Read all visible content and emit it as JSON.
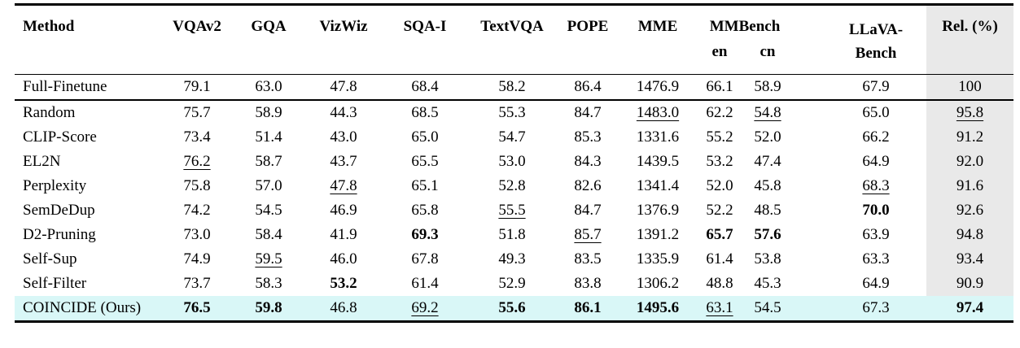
{
  "colors": {
    "highlight_row_bg": "#d9f7f7",
    "rel_column_bg": "#e9e9e9",
    "rule_color": "#000000",
    "text_color": "#000000"
  },
  "table": {
    "header": {
      "method": "Method",
      "single_cols": [
        "VQAv2",
        "GQA",
        "VizWiz",
        "SQA-I",
        "TextVQA",
        "POPE",
        "MME"
      ],
      "mmbench": {
        "label": "MMBench",
        "sub": [
          "en",
          "cn"
        ]
      },
      "llava_bench": {
        "line1": "LLaVA-",
        "line2": "Bench"
      },
      "rel": "Rel. (%)"
    },
    "full_finetune_row": {
      "method": "Full-Finetune",
      "highlight": false,
      "cells": [
        {
          "v": "79.1"
        },
        {
          "v": "63.0"
        },
        {
          "v": "47.8"
        },
        {
          "v": "68.4"
        },
        {
          "v": "58.2"
        },
        {
          "v": "86.4"
        },
        {
          "v": "1476.9"
        },
        {
          "v": "66.1"
        },
        {
          "v": "58.9"
        },
        {
          "v": "67.9"
        },
        {
          "v": "100"
        }
      ]
    },
    "rows": [
      {
        "method": "Random",
        "highlight": false,
        "cells": [
          {
            "v": "75.7"
          },
          {
            "v": "58.9"
          },
          {
            "v": "44.3"
          },
          {
            "v": "68.5"
          },
          {
            "v": "55.3"
          },
          {
            "v": "84.7"
          },
          {
            "v": "1483.0",
            "u": true
          },
          {
            "v": "62.2"
          },
          {
            "v": "54.8",
            "u": true
          },
          {
            "v": "65.0"
          },
          {
            "v": "95.8",
            "u": true
          }
        ]
      },
      {
        "method": "CLIP-Score",
        "highlight": false,
        "cells": [
          {
            "v": "73.4"
          },
          {
            "v": "51.4"
          },
          {
            "v": "43.0"
          },
          {
            "v": "65.0"
          },
          {
            "v": "54.7"
          },
          {
            "v": "85.3"
          },
          {
            "v": "1331.6"
          },
          {
            "v": "55.2"
          },
          {
            "v": "52.0"
          },
          {
            "v": "66.2"
          },
          {
            "v": "91.2"
          }
        ]
      },
      {
        "method": "EL2N",
        "highlight": false,
        "cells": [
          {
            "v": "76.2",
            "u": true
          },
          {
            "v": "58.7"
          },
          {
            "v": "43.7"
          },
          {
            "v": "65.5"
          },
          {
            "v": "53.0"
          },
          {
            "v": "84.3"
          },
          {
            "v": "1439.5"
          },
          {
            "v": "53.2"
          },
          {
            "v": "47.4"
          },
          {
            "v": "64.9"
          },
          {
            "v": "92.0"
          }
        ]
      },
      {
        "method": "Perplexity",
        "highlight": false,
        "cells": [
          {
            "v": "75.8"
          },
          {
            "v": "57.0"
          },
          {
            "v": "47.8",
            "u": true
          },
          {
            "v": "65.1"
          },
          {
            "v": "52.8"
          },
          {
            "v": "82.6"
          },
          {
            "v": "1341.4"
          },
          {
            "v": "52.0"
          },
          {
            "v": "45.8"
          },
          {
            "v": "68.3",
            "u": true
          },
          {
            "v": "91.6"
          }
        ]
      },
      {
        "method": "SemDeDup",
        "highlight": false,
        "cells": [
          {
            "v": "74.2"
          },
          {
            "v": "54.5"
          },
          {
            "v": "46.9"
          },
          {
            "v": "65.8"
          },
          {
            "v": "55.5",
            "u": true
          },
          {
            "v": "84.7"
          },
          {
            "v": "1376.9"
          },
          {
            "v": "52.2"
          },
          {
            "v": "48.5"
          },
          {
            "v": "70.0",
            "b": true
          },
          {
            "v": "92.6"
          }
        ]
      },
      {
        "method": "D2-Pruning",
        "highlight": false,
        "cells": [
          {
            "v": "73.0"
          },
          {
            "v": "58.4"
          },
          {
            "v": "41.9"
          },
          {
            "v": "69.3",
            "b": true
          },
          {
            "v": "51.8"
          },
          {
            "v": "85.7",
            "u": true
          },
          {
            "v": "1391.2"
          },
          {
            "v": "65.7",
            "b": true
          },
          {
            "v": "57.6",
            "b": true
          },
          {
            "v": "63.9"
          },
          {
            "v": "94.8"
          }
        ]
      },
      {
        "method": "Self-Sup",
        "highlight": false,
        "cells": [
          {
            "v": "74.9"
          },
          {
            "v": "59.5",
            "u": true
          },
          {
            "v": "46.0"
          },
          {
            "v": "67.8"
          },
          {
            "v": "49.3"
          },
          {
            "v": "83.5"
          },
          {
            "v": "1335.9"
          },
          {
            "v": "61.4"
          },
          {
            "v": "53.8"
          },
          {
            "v": "63.3"
          },
          {
            "v": "93.4"
          }
        ]
      },
      {
        "method": "Self-Filter",
        "highlight": false,
        "cells": [
          {
            "v": "73.7"
          },
          {
            "v": "58.3"
          },
          {
            "v": "53.2",
            "b": true
          },
          {
            "v": "61.4"
          },
          {
            "v": "52.9"
          },
          {
            "v": "83.8"
          },
          {
            "v": "1306.2"
          },
          {
            "v": "48.8"
          },
          {
            "v": "45.3"
          },
          {
            "v": "64.9"
          },
          {
            "v": "90.9"
          }
        ]
      },
      {
        "method": "COINCIDE (Ours)",
        "highlight": true,
        "cells": [
          {
            "v": "76.5",
            "b": true
          },
          {
            "v": "59.8",
            "b": true
          },
          {
            "v": "46.8"
          },
          {
            "v": "69.2",
            "u": true
          },
          {
            "v": "55.6",
            "b": true
          },
          {
            "v": "86.1",
            "b": true
          },
          {
            "v": "1495.6",
            "b": true
          },
          {
            "v": "63.1",
            "u": true
          },
          {
            "v": "54.5"
          },
          {
            "v": "67.3"
          },
          {
            "v": "97.4",
            "b": true
          }
        ]
      }
    ]
  }
}
